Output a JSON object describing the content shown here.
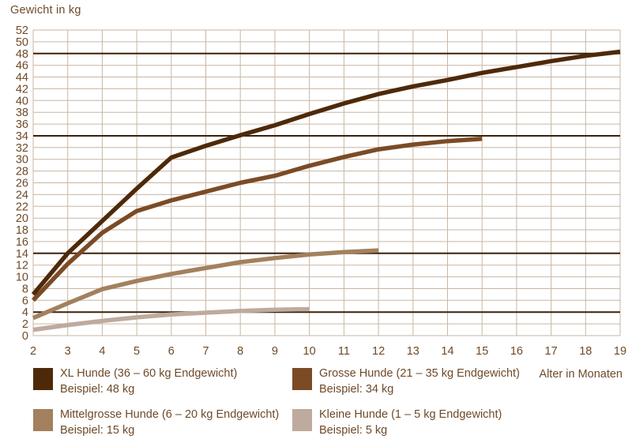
{
  "title": "Gewicht in kg",
  "chart_data": {
    "type": "line",
    "title": "Gewicht in kg",
    "xlabel": "Alter in Monaten",
    "ylabel": "Gewicht in kg",
    "xlim": [
      2,
      19
    ],
    "ylim": [
      0,
      52
    ],
    "x_ticks": [
      2,
      3,
      4,
      5,
      6,
      7,
      8,
      9,
      10,
      11,
      12,
      13,
      14,
      15,
      16,
      17,
      18,
      19
    ],
    "y_ticks": [
      0,
      2,
      4,
      6,
      8,
      10,
      12,
      14,
      16,
      18,
      20,
      22,
      24,
      26,
      28,
      30,
      32,
      34,
      36,
      38,
      40,
      42,
      44,
      46,
      48,
      50,
      52
    ],
    "grid": true,
    "grid_color": "#C9B6A3",
    "tick_label_color": "#6E4A28",
    "reference_lines": [
      48,
      34,
      14,
      4
    ],
    "reference_line_color": "#3B2109",
    "legend_position": "bottom",
    "series": [
      {
        "name": "XL Hunde (36 – 60 kg Endgewicht)",
        "example": "Beispiel: 48 kg",
        "color": "#4E2909",
        "points": [
          [
            2,
            7
          ],
          [
            3,
            14
          ],
          [
            4,
            19.5
          ],
          [
            5,
            25
          ],
          [
            6,
            30.3
          ],
          [
            7,
            32.3
          ],
          [
            8,
            34.1
          ],
          [
            9,
            35.8
          ],
          [
            10,
            37.7
          ],
          [
            11,
            39.5
          ],
          [
            12,
            41.1
          ],
          [
            13,
            42.4
          ],
          [
            14,
            43.5
          ],
          [
            15,
            44.7
          ],
          [
            16,
            45.7
          ],
          [
            17,
            46.7
          ],
          [
            18,
            47.6
          ],
          [
            19,
            48.3
          ]
        ]
      },
      {
        "name": "Grosse Hunde (21 – 35 kg Endgewicht)",
        "example": "Beispiel: 34 kg",
        "color": "#7B4B26",
        "points": [
          [
            2,
            6
          ],
          [
            3,
            12.2
          ],
          [
            4,
            17.5
          ],
          [
            5,
            21.2
          ],
          [
            6,
            23
          ],
          [
            7,
            24.5
          ],
          [
            8,
            26
          ],
          [
            9,
            27.2
          ],
          [
            10,
            28.9
          ],
          [
            11,
            30.4
          ],
          [
            12,
            31.7
          ],
          [
            13,
            32.5
          ],
          [
            14,
            33.1
          ],
          [
            15,
            33.5
          ]
        ]
      },
      {
        "name": "Mittelgrosse Hunde (6 – 20 kg Endgewicht)",
        "example": "Beispiel: 15 kg",
        "color": "#A3805E",
        "points": [
          [
            2,
            3
          ],
          [
            3,
            5.5
          ],
          [
            4,
            7.9
          ],
          [
            5,
            9.3
          ],
          [
            6,
            10.5
          ],
          [
            7,
            11.5
          ],
          [
            8,
            12.5
          ],
          [
            9,
            13.2
          ],
          [
            10,
            13.8
          ],
          [
            11,
            14.2
          ],
          [
            12,
            14.5
          ]
        ]
      },
      {
        "name": "Kleine Hunde (1 – 5 kg Endgewicht)",
        "example": "Beispiel: 5 kg",
        "color": "#BEAB9D",
        "points": [
          [
            2,
            1
          ],
          [
            3,
            1.8
          ],
          [
            4,
            2.5
          ],
          [
            5,
            3.1
          ],
          [
            6,
            3.6
          ],
          [
            7,
            3.9
          ],
          [
            8,
            4.2
          ],
          [
            9,
            4.4
          ],
          [
            10,
            4.5
          ]
        ]
      }
    ]
  }
}
